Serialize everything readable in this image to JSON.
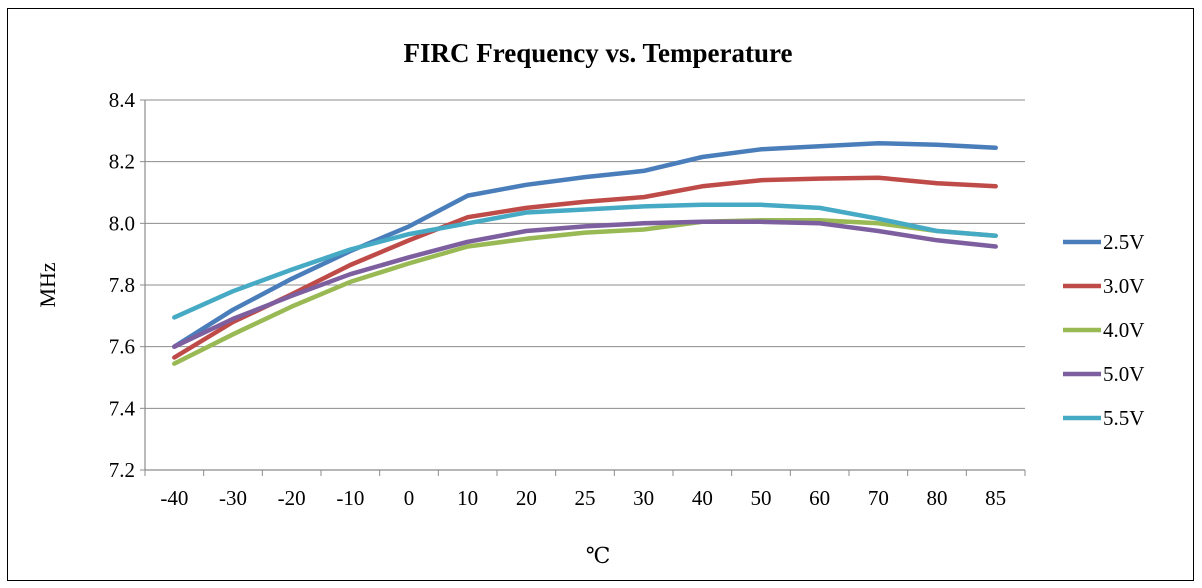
{
  "chart_data": {
    "type": "line",
    "title": "FIRC Frequency vs.  Temperature",
    "xlabel": "℃",
    "ylabel": "MHz",
    "categories": [
      "-40",
      "-30",
      "-20",
      "-10",
      "0",
      "10",
      "20",
      "25",
      "30",
      "40",
      "50",
      "60",
      "70",
      "80",
      "85"
    ],
    "ylim": [
      7.2,
      8.4
    ],
    "yticks": [
      "7.2",
      "7.4",
      "7.6",
      "7.8",
      "8.0",
      "8.2",
      "8.4"
    ],
    "grid": "horizontal",
    "legend_position": "right",
    "series": [
      {
        "name": "2.5V",
        "color": "#4a7ebb",
        "values": [
          7.6,
          7.72,
          7.82,
          7.91,
          7.99,
          8.09,
          8.125,
          8.15,
          8.17,
          8.215,
          8.24,
          8.25,
          8.26,
          8.255,
          8.245
        ]
      },
      {
        "name": "3.0V",
        "color": "#be4b48",
        "values": [
          7.565,
          7.68,
          7.77,
          7.865,
          7.945,
          8.02,
          8.05,
          8.07,
          8.085,
          8.12,
          8.14,
          8.145,
          8.148,
          8.13,
          8.12
        ]
      },
      {
        "name": "4.0V",
        "color": "#98b954",
        "values": [
          7.545,
          7.64,
          7.73,
          7.81,
          7.87,
          7.925,
          7.95,
          7.97,
          7.98,
          8.005,
          8.01,
          8.01,
          8.0,
          7.975,
          7.96
        ]
      },
      {
        "name": "5.0V",
        "color": "#7d5fa0",
        "values": [
          7.6,
          7.69,
          7.765,
          7.835,
          7.89,
          7.94,
          7.975,
          7.99,
          8.0,
          8.005,
          8.005,
          8.0,
          7.975,
          7.945,
          7.925
        ]
      },
      {
        "name": "5.5V",
        "color": "#46aac5",
        "values": [
          7.695,
          7.78,
          7.85,
          7.915,
          7.965,
          8.0,
          8.035,
          8.045,
          8.055,
          8.06,
          8.06,
          8.05,
          8.015,
          7.975,
          7.96
        ]
      }
    ]
  }
}
